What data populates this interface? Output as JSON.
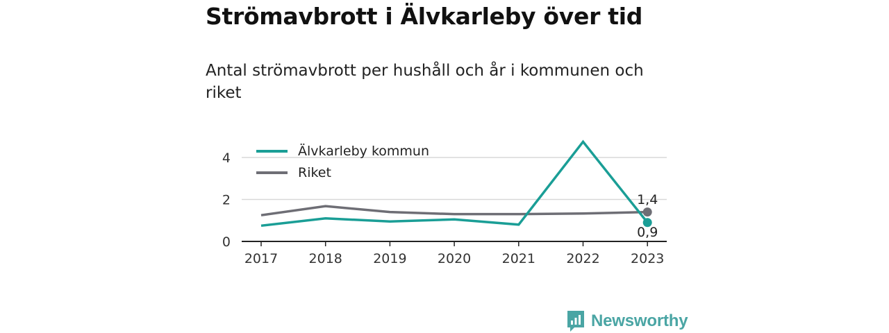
{
  "title": "Strömavbrott i Älvkarleby över tid",
  "subtitle": "Antal strömavbrott per hushåll och år i kommunen och riket",
  "brand": {
    "name": "Newsworthy",
    "icon": "newsworthy-logo-icon",
    "color": "#4aa5a4"
  },
  "chart_data": {
    "type": "line",
    "x": [
      "2017",
      "2018",
      "2019",
      "2020",
      "2021",
      "2022",
      "2023"
    ],
    "series": [
      {
        "name": "Älvkarleby kommun",
        "color": "#1a9e96",
        "values": [
          0.75,
          1.1,
          0.95,
          1.05,
          0.8,
          4.75,
          0.9
        ]
      },
      {
        "name": "Riket",
        "color": "#6e6e75",
        "values": [
          1.25,
          1.68,
          1.4,
          1.3,
          1.3,
          1.33,
          1.4
        ]
      }
    ],
    "ylim": [
      0,
      5
    ],
    "yticks": [
      "0",
      "2",
      "4"
    ],
    "grid": true,
    "legend_position": "top-left",
    "end_labels": [
      "0,9",
      "1,4"
    ],
    "xlabel": "",
    "ylabel": ""
  }
}
